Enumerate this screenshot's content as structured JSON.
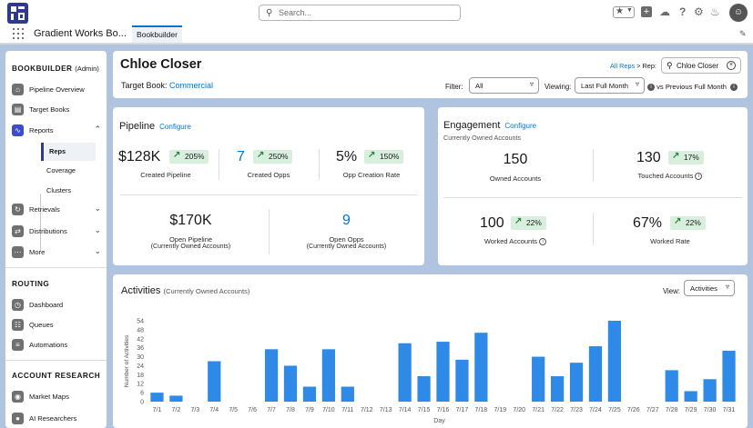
{
  "global": {
    "search_placeholder": "Search...",
    "app_name": "Gradient Works Bo...",
    "nav_tab": "Bookbuilder"
  },
  "sidebar": {
    "bookbuilder_head": "BOOKBUILDER",
    "bookbuilder_role": "(Admin)",
    "items": [
      {
        "label": "Pipeline Overview",
        "icon": "pipeline-icon"
      },
      {
        "label": "Target Books",
        "icon": "book-icon"
      },
      {
        "label": "Reports",
        "icon": "reports-icon"
      },
      {
        "label": "Retrievals",
        "icon": "retrievals-icon"
      },
      {
        "label": "Distributions",
        "icon": "distributions-icon"
      },
      {
        "label": "More",
        "icon": "more-icon"
      }
    ],
    "report_subitems": [
      "Reps",
      "Coverage",
      "Clusters"
    ],
    "routing_head": "ROUTING",
    "routing_items": [
      "Dashboard",
      "Queues",
      "Automations"
    ],
    "research_head": "ACCOUNT RESEARCH",
    "research_items": [
      "Market Maps",
      "AI Researchers"
    ]
  },
  "header": {
    "rep_name": "Chloe Closer",
    "target_book_label": "Target Book:",
    "target_book_value": "Commercial",
    "breadcrumb_link": "All Reps",
    "breadcrumb_sep": "> Rep:",
    "rep_search_value": "Chloe Closer",
    "filter_label": "Filter:",
    "filter_value": "All",
    "viewing_label": "Viewing:",
    "viewing_value": "Last Full Month",
    "compare_label": "vs Previous Full Month"
  },
  "pipeline": {
    "title": "Pipeline",
    "configure": "Configure",
    "created_pipeline": {
      "value": "$128K",
      "change": "205%",
      "label": "Created Pipeline"
    },
    "created_opps": {
      "value": "7",
      "change": "250%",
      "label": "Created Opps"
    },
    "opp_creation_rate": {
      "value": "5%",
      "change": "150%",
      "label": "Opp Creation Rate"
    },
    "open_pipeline": {
      "value": "$170K",
      "label": "Open Pipeline",
      "sub": "(Currently Owned Accounts)"
    },
    "open_opps": {
      "value": "9",
      "label": "Open Opps",
      "sub": "(Currently Owned Accounts)"
    }
  },
  "engagement": {
    "title": "Engagement",
    "configure": "Configure",
    "subtitle": "Currently Owned Accounts",
    "owned_accounts": {
      "value": "150",
      "label": "Owned Accounts"
    },
    "touched_accounts": {
      "value": "130",
      "change": "17%",
      "label": "Touched Accounts"
    },
    "worked_accounts": {
      "value": "100",
      "change": "22%",
      "label": "Worked Accounts"
    },
    "worked_rate": {
      "value": "67%",
      "change": "22%",
      "label": "Worked Rate"
    }
  },
  "activities": {
    "title": "Activities",
    "subtitle": "(Currently Owned Accounts)",
    "view_label": "View:",
    "view_value": "Activities"
  },
  "chart_data": {
    "type": "bar",
    "xlabel": "Day",
    "ylabel": "Number of Activities",
    "ylim": [
      0,
      54
    ],
    "yticks": [
      0,
      6,
      12,
      18,
      24,
      30,
      36,
      42,
      48,
      54
    ],
    "bar_color": "#2e8ae6",
    "categories": [
      "7/1",
      "7/2",
      "7/3",
      "7/4",
      "7/5",
      "7/6",
      "7/7",
      "7/8",
      "7/9",
      "7/10",
      "7/11",
      "7/12",
      "7/13",
      "7/14",
      "7/15",
      "7/16",
      "7/17",
      "7/18",
      "7/19",
      "7/20",
      "7/21",
      "7/22",
      "7/23",
      "7/24",
      "7/25",
      "7/26",
      "7/27",
      "7/28",
      "7/29",
      "7/30",
      "7/31"
    ],
    "values": [
      6,
      4,
      0,
      27,
      0,
      0,
      35,
      24,
      10,
      35,
      10,
      0,
      0,
      39,
      17,
      40,
      28,
      46,
      0,
      0,
      30,
      17,
      26,
      37,
      54,
      0,
      0,
      21,
      7,
      15,
      34
    ]
  }
}
